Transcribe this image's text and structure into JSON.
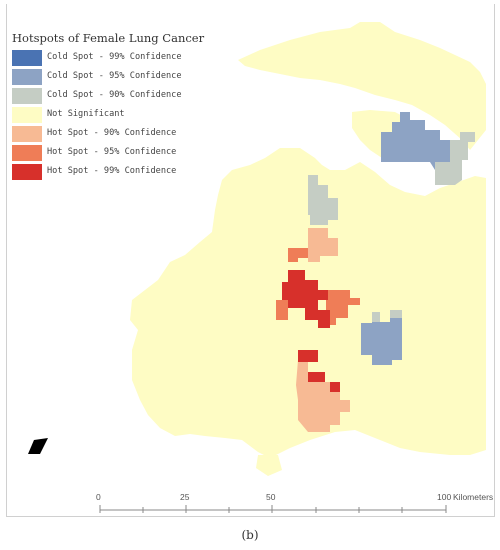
{
  "map": {
    "title": "Hotspots of Female Lung Cancer",
    "legend": [
      {
        "label": "Cold Spot - 99% Confidence",
        "color": "#4a73b3"
      },
      {
        "label": "Cold Spot - 95% Confidence",
        "color": "#8da3c4"
      },
      {
        "label": "Cold Spot - 90% Confidence",
        "color": "#c5cdc4"
      },
      {
        "label": "Not Significant",
        "color": "#fefcc4"
      },
      {
        "label": "Hot Spot - 90% Confidence",
        "color": "#f7ba94"
      },
      {
        "label": "Hot Spot - 95% Confidence",
        "color": "#ef7d57"
      },
      {
        "label": "Hot Spot - 99% Confidence",
        "color": "#d7302b"
      }
    ],
    "scale_bar": {
      "ticks": [
        "0",
        "25",
        "50",
        "100"
      ],
      "unit": "Kilometers"
    },
    "caption": "(b)",
    "north_arrow": "north-arrow-icon"
  }
}
